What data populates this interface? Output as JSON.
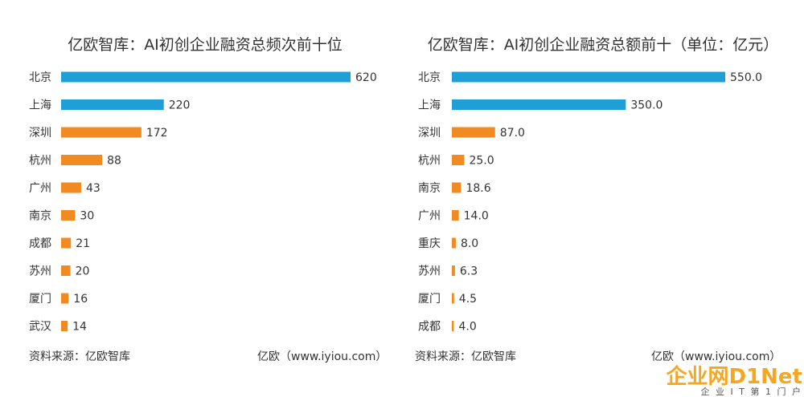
{
  "colors": {
    "highlight": "#1f9fd6",
    "default": "#f28a22"
  },
  "chart_data": [
    {
      "type": "bar",
      "orientation": "horizontal",
      "title": "亿欧智库：AI初创企业融资总频次前十位",
      "categories": [
        "北京",
        "上海",
        "深圳",
        "杭州",
        "广州",
        "南京",
        "成都",
        "苏州",
        "厦门",
        "武汉"
      ],
      "values": [
        620,
        220,
        172,
        88,
        43,
        30,
        21,
        20,
        16,
        14
      ],
      "value_labels": [
        "620",
        "220",
        "172",
        "88",
        "43",
        "30",
        "21",
        "20",
        "16",
        "14"
      ],
      "highlight_count": 2,
      "xlim": [
        0,
        620
      ],
      "grid": false,
      "legend": "none",
      "source": "资料来源：亿欧智库",
      "credit": "亿欧（www.iyiou.com）"
    },
    {
      "type": "bar",
      "orientation": "horizontal",
      "title": "亿欧智库：AI初创企业融资总额前十（单位：亿元）",
      "categories": [
        "北京",
        "上海",
        "深圳",
        "杭州",
        "南京",
        "广州",
        "重庆",
        "苏州",
        "厦门",
        "成都"
      ],
      "values": [
        550.0,
        350.0,
        87.0,
        25.0,
        18.6,
        14.0,
        8.0,
        6.3,
        4.5,
        4.0
      ],
      "value_labels": [
        "550.0",
        "350.0",
        "87.0",
        "25.0",
        "18.6",
        "14.0",
        "8.0",
        "6.3",
        "4.5",
        "4.0"
      ],
      "highlight_count": 2,
      "xlim": [
        0,
        550
      ],
      "grid": false,
      "legend": "none",
      "source": "资料来源：亿欧智库",
      "credit": "亿欧（www.iyiou.com）"
    }
  ],
  "watermark": {
    "main": "企业网D1Net",
    "sub": "企 业 I T 第 1 门 户"
  }
}
